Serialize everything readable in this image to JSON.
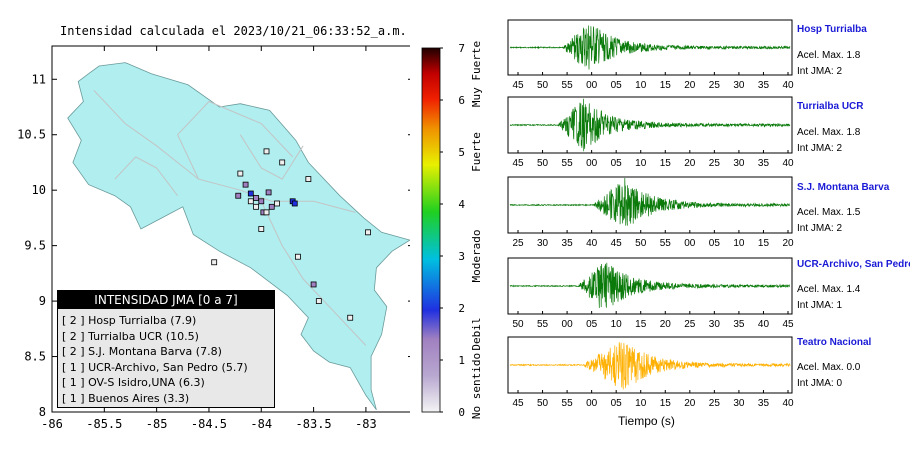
{
  "chart_data": [
    {
      "type": "scatter",
      "title": "Intensidad calculada el 2023/10/21_06:33:52_a.m.",
      "xlim": [
        -86,
        -82.55
      ],
      "ylim": [
        8,
        11.3
      ],
      "x_ticks": [
        "-86",
        "-85.5",
        "-85",
        "-84.5",
        "-84",
        "-83.5",
        "-83"
      ],
      "y_ticks": [
        "8",
        "8.5",
        "9",
        "9.5",
        "10",
        "10.5",
        "11"
      ],
      "stations": [
        {
          "lon": -83.7,
          "lat": 9.9,
          "intensity": 2
        },
        {
          "lon": -83.68,
          "lat": 9.88,
          "intensity": 2
        },
        {
          "lon": -84.1,
          "lat": 9.97,
          "intensity": 2
        },
        {
          "lon": -84.05,
          "lat": 9.93,
          "intensity": 1
        },
        {
          "lon": -84.0,
          "lat": 9.9,
          "intensity": 1
        },
        {
          "lon": -83.9,
          "lat": 9.85,
          "intensity": 1
        },
        {
          "lon": -83.93,
          "lat": 9.98,
          "intensity": 1
        },
        {
          "lon": -84.15,
          "lat": 10.05,
          "intensity": 1
        },
        {
          "lon": -83.98,
          "lat": 9.8,
          "intensity": 1
        },
        {
          "lon": -84.22,
          "lat": 9.95,
          "intensity": 1
        },
        {
          "lon": -83.5,
          "lat": 9.15,
          "intensity": 1
        },
        {
          "lon": -83.95,
          "lat": 10.35,
          "intensity": 0
        },
        {
          "lon": -83.8,
          "lat": 10.25,
          "intensity": 0
        },
        {
          "lon": -83.55,
          "lat": 10.1,
          "intensity": 0
        },
        {
          "lon": -84.2,
          "lat": 10.15,
          "intensity": 0
        },
        {
          "lon": -84.0,
          "lat": 9.65,
          "intensity": 0
        },
        {
          "lon": -83.95,
          "lat": 9.8,
          "intensity": 0
        },
        {
          "lon": -84.1,
          "lat": 9.9,
          "intensity": 0
        },
        {
          "lon": -84.05,
          "lat": 9.85,
          "intensity": 0
        },
        {
          "lon": -83.85,
          "lat": 9.88,
          "intensity": 0
        },
        {
          "lon": -83.65,
          "lat": 9.4,
          "intensity": 0
        },
        {
          "lon": -83.45,
          "lat": 9.0,
          "intensity": 0
        },
        {
          "lon": -83.15,
          "lat": 8.85,
          "intensity": 0
        },
        {
          "lon": -82.98,
          "lat": 9.62,
          "intensity": 0
        },
        {
          "lon": -84.45,
          "lat": 9.35,
          "intensity": 0
        }
      ],
      "colorbar": {
        "range": [
          0,
          7
        ],
        "ticks": [
          "0",
          "1",
          "2",
          "3",
          "4",
          "5",
          "6",
          "7"
        ],
        "labels": [
          "No sentido",
          "Debil",
          "Moderado",
          "Fuerte",
          "Muy Fuerte"
        ]
      }
    },
    {
      "type": "line",
      "xlabel": "Tiempo (s)",
      "traces": [
        {
          "name": "Hosp Turrialba",
          "accel_label": "Acel. Max. 1.8",
          "int_label": "Int JMA: 2",
          "color": "#0a7a0a",
          "ticks": [
            "45",
            "50",
            "55",
            "00",
            "05",
            "10",
            "15",
            "20",
            "25",
            "30",
            "35",
            "40"
          ],
          "onset": 10.5,
          "peak": 15.5,
          "amp": 1.0
        },
        {
          "name": "Turrialba UCR",
          "accel_label": "Acel. Max. 1.8",
          "int_label": "Int JMA: 2",
          "color": "#0a7a0a",
          "ticks": [
            "45",
            "50",
            "55",
            "00",
            "05",
            "10",
            "15",
            "20",
            "25",
            "30",
            "35",
            "40"
          ],
          "onset": 9.5,
          "peak": 14.5,
          "amp": 1.0
        },
        {
          "name": "S.J. Montana Barva",
          "accel_label": "Acel. Max. 1.5",
          "int_label": "Int JMA: 2",
          "color": "#0a7a0a",
          "ticks": [
            "25",
            "30",
            "35",
            "40",
            "45",
            "50",
            "55",
            "00",
            "05",
            "10",
            "15",
            "20"
          ],
          "onset": 16.5,
          "peak": 22.5,
          "amp": 1.0
        },
        {
          "name": "UCR-Archivo, San Pedro",
          "accel_label": "Acel. Max. 1.4",
          "int_label": "Int JMA: 1",
          "color": "#0a7a0a",
          "ticks": [
            "50",
            "55",
            "00",
            "05",
            "10",
            "15",
            "20",
            "25",
            "30",
            "35",
            "40",
            "45"
          ],
          "onset": 13.5,
          "peak": 18.5,
          "amp": 1.0
        },
        {
          "name": "Teatro Nacional",
          "accel_label": "Acel. Max. 0.0",
          "int_label": "Int JMA: 0",
          "color": "#ffb000",
          "ticks": [
            "45",
            "50",
            "55",
            "00",
            "05",
            "10",
            "15",
            "20",
            "25",
            "30",
            "35",
            "40"
          ],
          "onset": 14.5,
          "peak": 22.5,
          "amp": 1.0
        }
      ]
    }
  ],
  "legend": {
    "title": "INTENSIDAD JMA [0 a 7]",
    "rows": [
      "[ 2 ]  Hosp Turrialba (7.9)",
      "[ 2 ]  Turrialba UCR (10.5)",
      "[ 2 ]  S.J. Montana Barva (7.8)",
      "[ 1 ]  UCR-Archivo, San Pedro (5.7)",
      "[ 1 ]  OV-S Isidro,UNA (6.3)",
      "[ 1 ]  Buenos Aires (3.3)"
    ]
  },
  "colors": {
    "land": "#b0eef0",
    "road": "#c4c4c4",
    "trace_green": "#0a7a0a",
    "trace_orange": "#ffb000",
    "station_name": "#1a1ad6"
  }
}
